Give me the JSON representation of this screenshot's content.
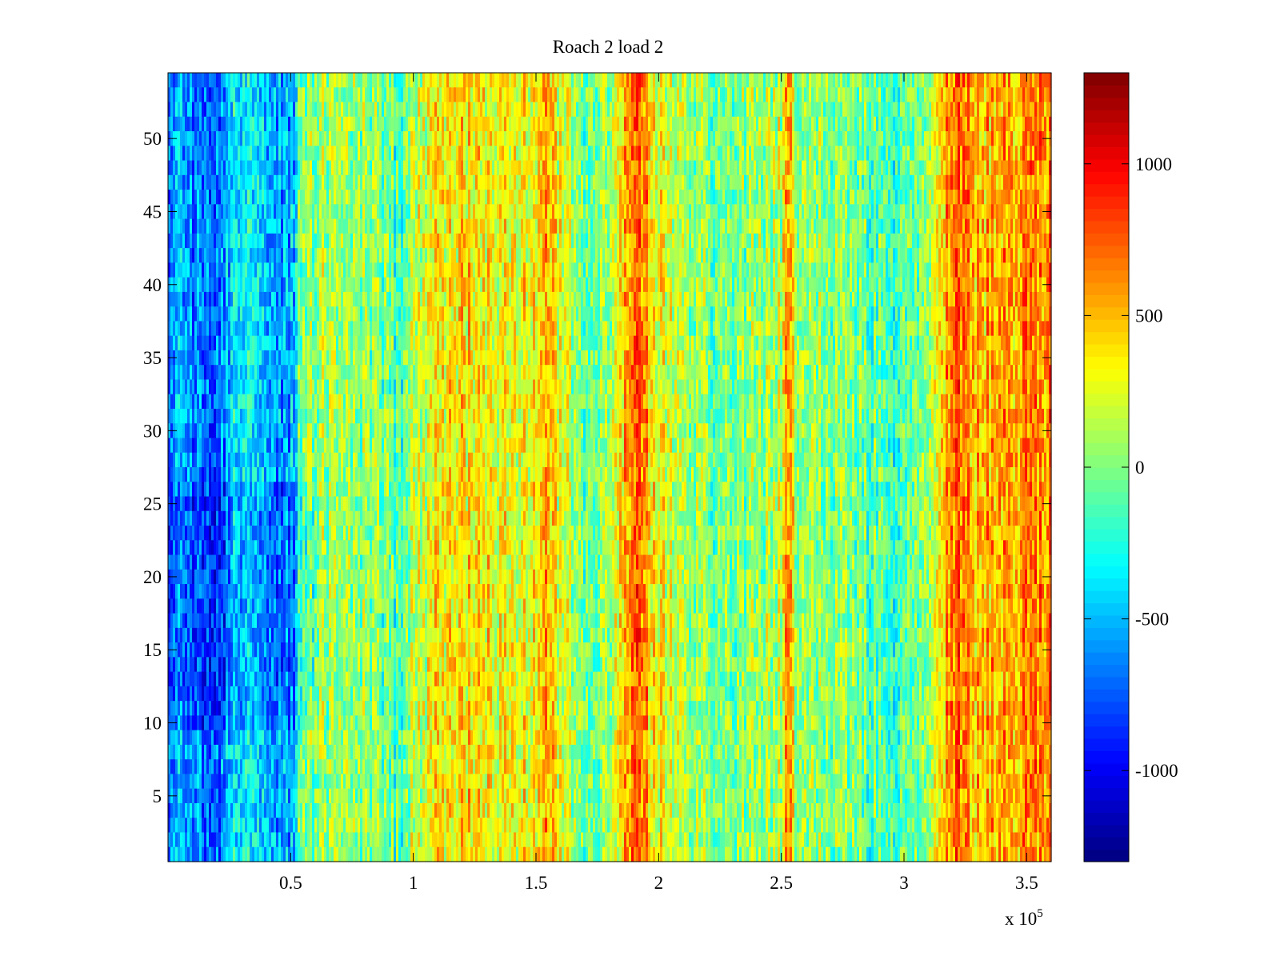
{
  "chart_data": {
    "type": "heatmap",
    "title": "Roach 2 load 2",
    "xlabel": "",
    "ylabel": "",
    "x_multiplier_label": "x 10",
    "x_multiplier_exponent": "5",
    "xlim": [
      0.0,
      3.6
    ],
    "ylim": [
      0.5,
      54.5
    ],
    "x_ticks": [
      0.5,
      1,
      1.5,
      2,
      2.5,
      3,
      3.5
    ],
    "x_tick_labels": [
      "0.5",
      "1",
      "1.5",
      "2",
      "2.5",
      "3",
      "3.5"
    ],
    "y_ticks": [
      5,
      10,
      15,
      20,
      25,
      30,
      35,
      40,
      45,
      50
    ],
    "y_tick_labels": [
      "5",
      "10",
      "15",
      "20",
      "25",
      "30",
      "35",
      "40",
      "45",
      "50"
    ],
    "rows": 54,
    "colormap": "jet",
    "clim": [
      -1300,
      1300
    ],
    "colorbar_ticks": [
      1000,
      500,
      0,
      -500,
      -1000
    ],
    "colorbar_tick_labels": [
      "1000",
      "500",
      "0",
      "-500",
      "-1000"
    ],
    "column_profile": {
      "x": [
        0.0,
        0.1,
        0.2,
        0.3,
        0.4,
        0.5,
        0.55,
        0.7,
        0.85,
        0.95,
        1.0,
        1.1,
        1.2,
        1.3,
        1.4,
        1.5,
        1.55,
        1.6,
        1.7,
        1.8,
        1.85,
        1.9,
        1.95,
        2.0,
        2.1,
        2.2,
        2.3,
        2.4,
        2.5,
        2.53,
        2.56,
        2.7,
        2.9,
        3.0,
        3.1,
        3.15,
        3.2,
        3.25,
        3.3,
        3.4,
        3.5,
        3.6
      ],
      "mean": [
        -550,
        -650,
        -700,
        -300,
        -550,
        -600,
        50,
        100,
        0,
        -150,
        150,
        350,
        400,
        350,
        250,
        350,
        550,
        200,
        -50,
        50,
        350,
        750,
        550,
        300,
        100,
        0,
        -50,
        50,
        150,
        700,
        100,
        0,
        -100,
        -150,
        100,
        400,
        750,
        650,
        500,
        550,
        600,
        650
      ]
    },
    "grid": false,
    "legend": "none"
  }
}
